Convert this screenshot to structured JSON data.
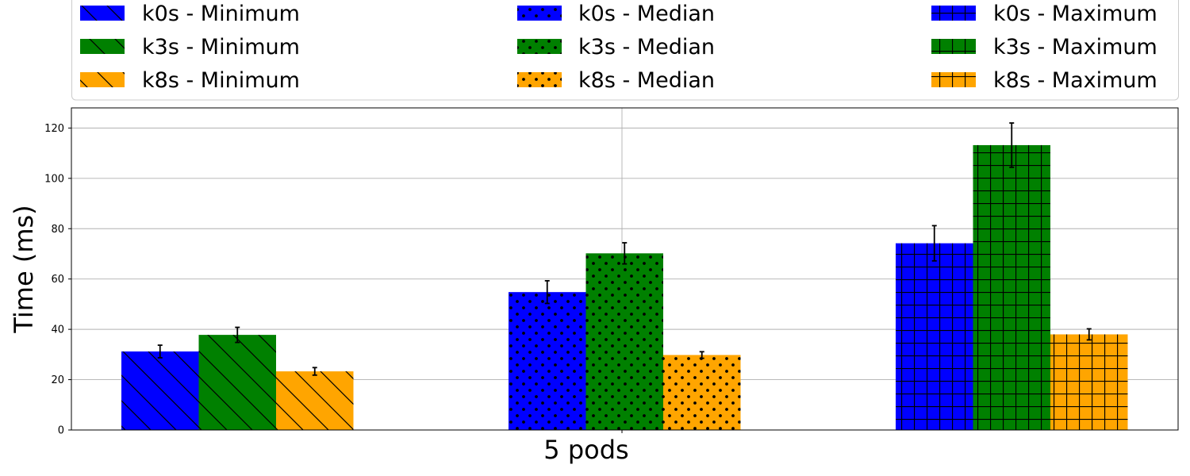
{
  "chart_data": {
    "type": "bar",
    "title": "",
    "xlabel": "5 pods",
    "ylabel": "Time (ms)",
    "ylim": [
      0,
      128
    ],
    "yticks": [
      0,
      20,
      40,
      60,
      80,
      100,
      120
    ],
    "grid": true,
    "legend_position": "top",
    "groups": [
      "Minimum",
      "Median",
      "Maximum"
    ],
    "series": [
      {
        "name": "k0s - Minimum",
        "distribution": "k0s",
        "group": "Minimum",
        "value": 31.2,
        "error": 2.5,
        "color": "#0000ff",
        "hatch": "diagonal"
      },
      {
        "name": "k3s - Minimum",
        "distribution": "k3s",
        "group": "Minimum",
        "value": 37.8,
        "error": 3.0,
        "color": "#008000",
        "hatch": "diagonal"
      },
      {
        "name": "k8s - Minimum",
        "distribution": "k8s",
        "group": "Minimum",
        "value": 23.3,
        "error": 1.5,
        "color": "#ffa500",
        "hatch": "diagonal"
      },
      {
        "name": "k0s - Median",
        "distribution": "k0s",
        "group": "Median",
        "value": 54.8,
        "error": 4.5,
        "color": "#0000ff",
        "hatch": "dots"
      },
      {
        "name": "k3s - Median",
        "distribution": "k3s",
        "group": "Median",
        "value": 70.2,
        "error": 4.2,
        "color": "#008000",
        "hatch": "dots"
      },
      {
        "name": "k8s - Median",
        "distribution": "k8s",
        "group": "Median",
        "value": 29.8,
        "error": 1.3,
        "color": "#ffa500",
        "hatch": "dots"
      },
      {
        "name": "k0s - Maximum",
        "distribution": "k0s",
        "group": "Maximum",
        "value": 74.2,
        "error": 7.0,
        "color": "#0000ff",
        "hatch": "grid"
      },
      {
        "name": "k3s - Maximum",
        "distribution": "k3s",
        "group": "Maximum",
        "value": 113.2,
        "error": 8.8,
        "color": "#008000",
        "hatch": "grid"
      },
      {
        "name": "k8s - Maximum",
        "distribution": "k8s",
        "group": "Maximum",
        "value": 38.0,
        "error": 2.2,
        "color": "#ffa500",
        "hatch": "grid"
      }
    ]
  }
}
